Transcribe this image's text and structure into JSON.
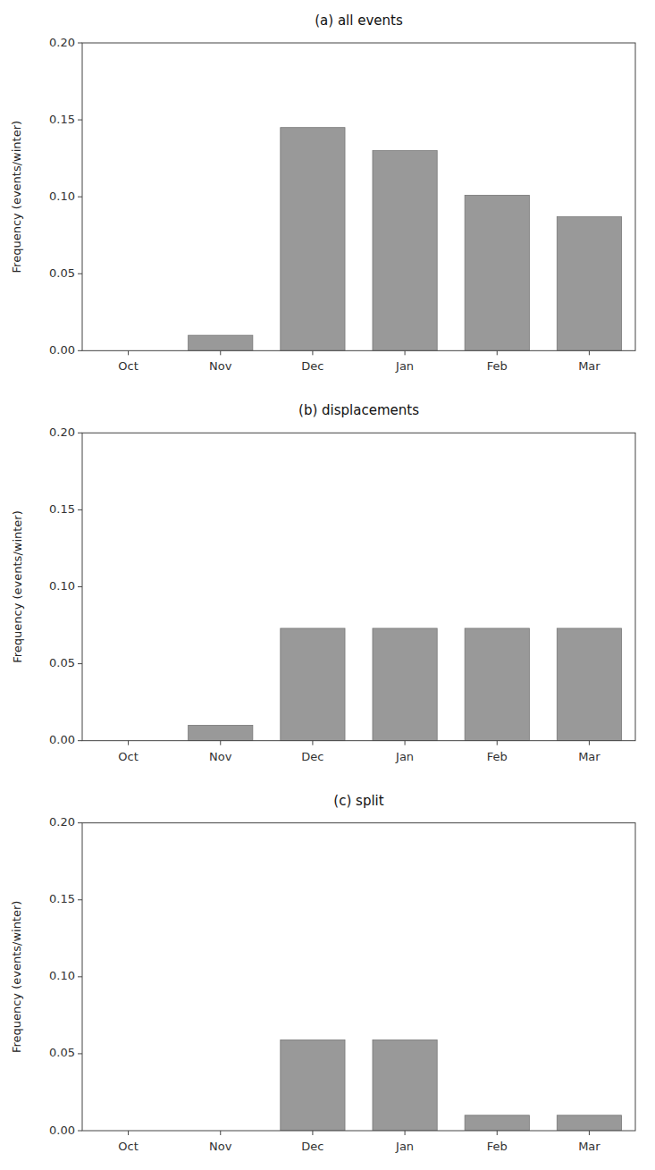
{
  "chart_data": [
    {
      "type": "bar",
      "title": "(a) all events",
      "categories": [
        "Oct",
        "Nov",
        "Dec",
        "Jan",
        "Feb",
        "Mar"
      ],
      "values": [
        0.0,
        0.01,
        0.145,
        0.13,
        0.101,
        0.087
      ],
      "color": "#999999",
      "ylabel": "Frequency (events/winter)",
      "ylim": [
        0.0,
        0.2
      ],
      "yticks": [
        {
          "value": 0.0,
          "label": "0.00"
        },
        0.05,
        {
          "value": 0.1,
          "label": "0.10"
        },
        0.15,
        {
          "value": 0.2,
          "label": "0.20"
        }
      ]
    },
    {
      "type": "bar",
      "title": "(b) displacements",
      "categories": [
        "Oct",
        "Nov",
        "Dec",
        "Jan",
        "Feb",
        "Mar"
      ],
      "values": [
        0.0,
        0.01,
        0.073,
        0.073,
        0.073,
        0.073
      ],
      "color": "#999999",
      "ylabel": "Frequency (events/winter)",
      "ylim": [
        0.0,
        0.2
      ],
      "yticks": [
        {
          "value": 0.0,
          "label": "0.00"
        },
        0.05,
        {
          "value": 0.1,
          "label": "0.10"
        },
        0.15,
        {
          "value": 0.2,
          "label": "0.20"
        }
      ]
    },
    {
      "type": "bar",
      "title": "(c) split",
      "categories": [
        "Oct",
        "Nov",
        "Dec",
        "Jan",
        "Feb",
        "Mar"
      ],
      "values": [
        0.0,
        0.0,
        0.059,
        0.059,
        0.01,
        0.01
      ],
      "color": "#999999",
      "ylabel": "Frequency (events/winter)",
      "ylim": [
        0.0,
        0.2
      ],
      "yticks": [
        {
          "value": 0.0,
          "label": "0.00"
        },
        0.05,
        {
          "value": 0.1,
          "label": "0.10"
        },
        0.15,
        {
          "value": 0.2,
          "label": "0.20"
        }
      ]
    }
  ]
}
